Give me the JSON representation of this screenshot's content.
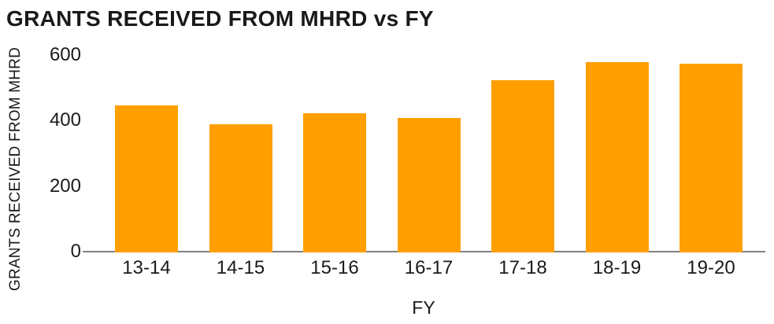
{
  "chart_data": {
    "type": "bar",
    "title": "GRANTS RECEIVED FROM MHRD vs FY",
    "xlabel": "FY",
    "ylabel": "GRANTS RECEIVED FROM MHRD",
    "categories": [
      "13-14",
      "14-15",
      "15-16",
      "16-17",
      "17-18",
      "18-19",
      "19-20"
    ],
    "values": [
      450,
      392,
      425,
      410,
      525,
      582,
      576
    ],
    "yticks": [
      0,
      200,
      400,
      600
    ],
    "ylim": [
      0,
      600
    ],
    "grid": false,
    "legend": false,
    "colors": {
      "bar": "#ff9f00",
      "axis_line": "#808080",
      "text": "#1a1a1a",
      "background": "#ffffff"
    }
  }
}
